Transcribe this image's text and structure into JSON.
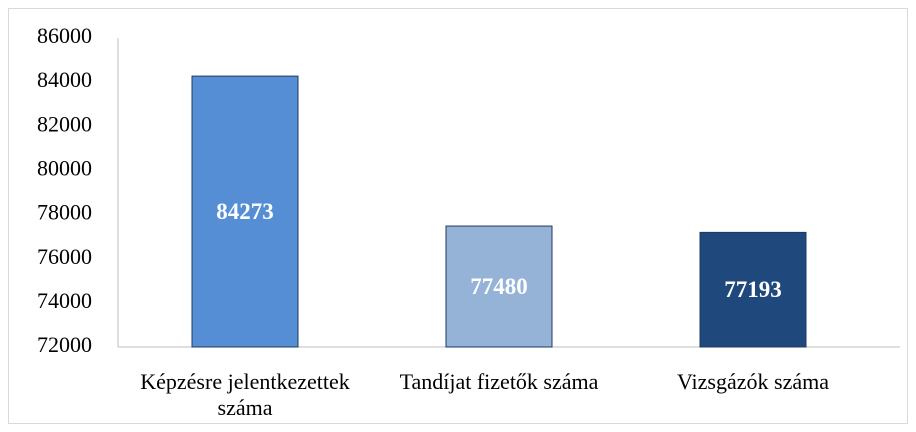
{
  "chart_data": {
    "type": "bar",
    "categories": [
      "Képzésre jelentkezettek száma",
      "Tandíjat fizetők száma",
      "Vizsgázók száma"
    ],
    "values": [
      84273,
      77480,
      77193
    ],
    "colors": [
      "#558ed5",
      "#95b3d7",
      "#1f497d"
    ],
    "ylim": [
      72000,
      86000
    ],
    "yticks": [
      72000,
      74000,
      76000,
      78000,
      80000,
      82000,
      84000,
      86000
    ],
    "grid": false
  }
}
